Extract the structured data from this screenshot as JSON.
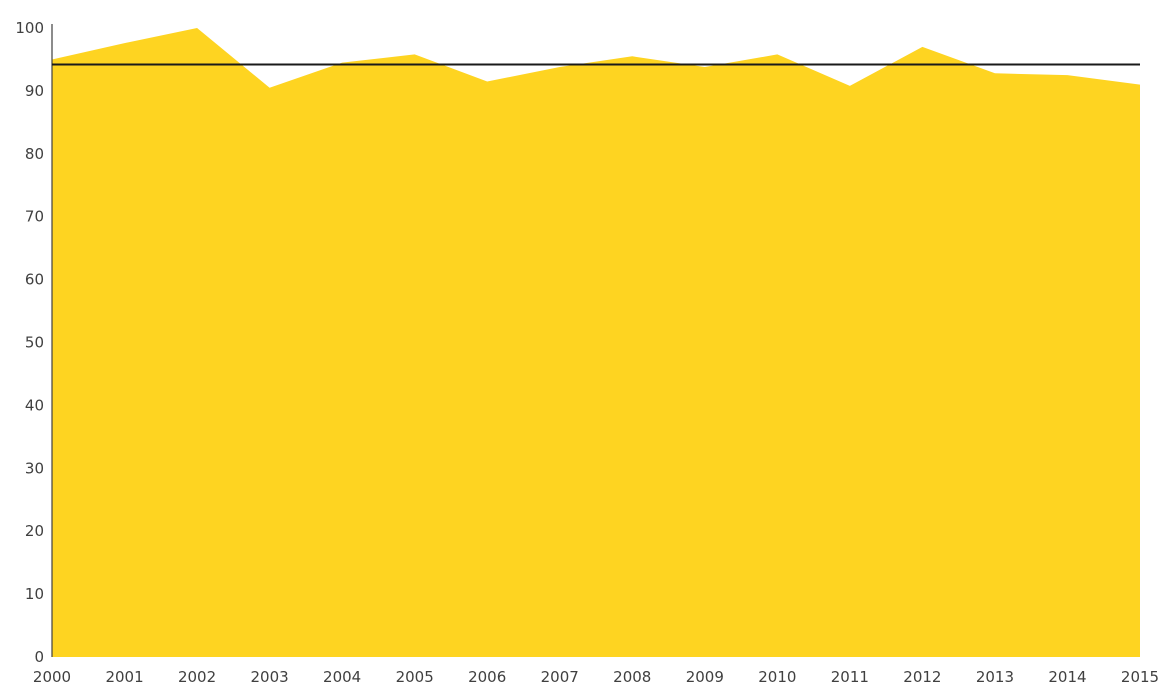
{
  "chart_data": {
    "type": "area",
    "title": "",
    "xlabel": "",
    "ylabel": "",
    "x": [
      2000,
      2001,
      2002,
      2003,
      2004,
      2005,
      2006,
      2007,
      2008,
      2009,
      2010,
      2011,
      2012,
      2013,
      2014,
      2015
    ],
    "x_tick_labels": [
      "2000",
      "2001",
      "2002",
      "2003",
      "2004",
      "2005",
      "2006",
      "2007",
      "2008",
      "2009",
      "2010",
      "2011",
      "2012",
      "2013",
      "2014",
      "2015"
    ],
    "series": [
      {
        "values": [
          95,
          97.6,
          100,
          90.5,
          94.5,
          95.8,
          91.5,
          93.8,
          95.5,
          93.8,
          95.8,
          90.8,
          97,
          92.8,
          92.5,
          91
        ],
        "color": "#FED421"
      }
    ],
    "reference_line": {
      "value": 94.2,
      "color": "#1a1a1a"
    },
    "ylim": [
      0,
      100
    ],
    "y_ticks": [
      0,
      10,
      20,
      30,
      40,
      50,
      60,
      70,
      80,
      90,
      100
    ],
    "y_tick_labels": [
      "0",
      "10",
      "20",
      "30",
      "40",
      "50",
      "60",
      "70",
      "80",
      "90",
      "100"
    ],
    "grid": false,
    "legend": "none"
  }
}
